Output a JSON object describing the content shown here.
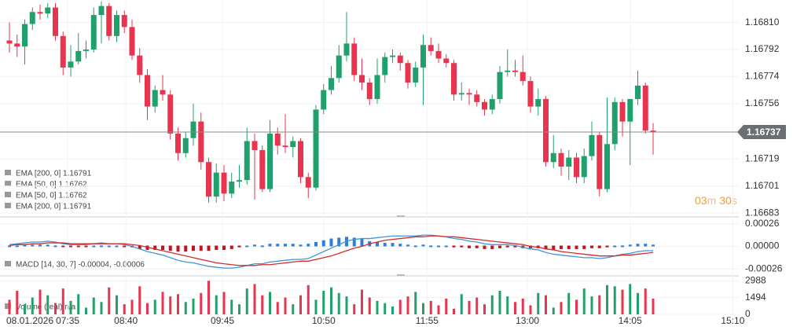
{
  "chart_data": [
    {
      "type": "candlestick",
      "indicators": [
        "EMA [200, 0] 1.16791",
        "EMA [50, 0] 1.16762",
        "EMA [50, 0] 1.16762",
        "EMA [200, 0] 1.16791"
      ],
      "up_color": "#22a06b",
      "down_color": "#e8344e",
      "ohlc": [
        [
          1.16798,
          1.1681,
          1.1679,
          1.16796
        ],
        [
          1.16796,
          1.16802,
          1.16787,
          1.16794
        ],
        [
          1.16794,
          1.16812,
          1.16782,
          1.16809
        ],
        [
          1.16809,
          1.1682,
          1.16805,
          1.16817
        ],
        [
          1.16817,
          1.16822,
          1.16812,
          1.16816
        ],
        [
          1.16816,
          1.16823,
          1.16813,
          1.1682
        ],
        [
          1.1682,
          1.16823,
          1.16798,
          1.16801
        ],
        [
          1.16801,
          1.16804,
          1.16775,
          1.1678
        ],
        [
          1.1678,
          1.16795,
          1.16774,
          1.16784
        ],
        [
          1.16784,
          1.16803,
          1.16782,
          1.16791
        ],
        [
          1.16791,
          1.16798,
          1.16786,
          1.16792
        ],
        [
          1.16792,
          1.1682,
          1.1679,
          1.16815
        ],
        [
          1.16815,
          1.16824,
          1.16796,
          1.16821
        ],
        [
          1.16821,
          1.16823,
          1.16798,
          1.16801
        ],
        [
          1.16801,
          1.16818,
          1.16797,
          1.16815
        ],
        [
          1.16815,
          1.16818,
          1.16803,
          1.16807
        ],
        [
          1.16807,
          1.16812,
          1.16785,
          1.16788
        ],
        [
          1.16788,
          1.16793,
          1.1677,
          1.16775
        ],
        [
          1.16775,
          1.16779,
          1.16745,
          1.16754
        ],
        [
          1.16754,
          1.16768,
          1.1675,
          1.16765
        ],
        [
          1.16765,
          1.16775,
          1.16758,
          1.16762
        ],
        [
          1.16762,
          1.16765,
          1.16732,
          1.16736
        ],
        [
          1.16736,
          1.1674,
          1.16718,
          1.16723
        ],
        [
          1.16723,
          1.16737,
          1.1672,
          1.16733
        ],
        [
          1.16733,
          1.16756,
          1.16728,
          1.16744
        ],
        [
          1.16744,
          1.1675,
          1.16712,
          1.16717
        ],
        [
          1.16717,
          1.1672,
          1.1669,
          1.16694
        ],
        [
          1.16694,
          1.16716,
          1.1669,
          1.1671
        ],
        [
          1.1671,
          1.16715,
          1.16691,
          1.16696
        ],
        [
          1.16696,
          1.1671,
          1.16693,
          1.16704
        ],
        [
          1.16704,
          1.16715,
          1.167,
          1.16705
        ],
        [
          1.16705,
          1.1674,
          1.16702,
          1.16731
        ],
        [
          1.16731,
          1.16736,
          1.16692,
          1.16725
        ],
        [
          1.16725,
          1.16728,
          1.16697,
          1.16699
        ],
        [
          1.16699,
          1.16745,
          1.16697,
          1.16736
        ],
        [
          1.16736,
          1.1674,
          1.16722,
          1.16728
        ],
        [
          1.16728,
          1.16749,
          1.16723,
          1.16727
        ],
        [
          1.16727,
          1.16734,
          1.1672,
          1.16731
        ],
        [
          1.16731,
          1.16733,
          1.16703,
          1.16707
        ],
        [
          1.16707,
          1.1671,
          1.16693,
          1.167
        ],
        [
          1.167,
          1.16755,
          1.16698,
          1.16752
        ],
        [
          1.16752,
          1.16769,
          1.16749,
          1.16765
        ],
        [
          1.16765,
          1.16781,
          1.16762,
          1.16773
        ],
        [
          1.16773,
          1.16795,
          1.1677,
          1.16788
        ],
        [
          1.16788,
          1.16817,
          1.16784,
          1.16796
        ],
        [
          1.16796,
          1.168,
          1.16771,
          1.16775
        ],
        [
          1.16775,
          1.16786,
          1.16765,
          1.1677
        ],
        [
          1.1677,
          1.16773,
          1.16755,
          1.16759
        ],
        [
          1.16759,
          1.16786,
          1.16756,
          1.16775
        ],
        [
          1.16775,
          1.1679,
          1.1677,
          1.16787
        ],
        [
          1.16787,
          1.16792,
          1.16783,
          1.16788
        ],
        [
          1.16788,
          1.1679,
          1.16778,
          1.16783
        ],
        [
          1.16783,
          1.16785,
          1.16766,
          1.1677
        ],
        [
          1.1677,
          1.16784,
          1.16767,
          1.1678
        ],
        [
          1.1678,
          1.16802,
          1.16755,
          1.16795
        ],
        [
          1.16795,
          1.168,
          1.16788,
          1.16791
        ],
        [
          1.16791,
          1.16796,
          1.16783,
          1.16786
        ],
        [
          1.16786,
          1.16789,
          1.1678,
          1.16783
        ],
        [
          1.16783,
          1.16785,
          1.16758,
          1.16762
        ],
        [
          1.16762,
          1.1677,
          1.16758,
          1.16763
        ],
        [
          1.16763,
          1.16766,
          1.16755,
          1.16762
        ],
        [
          1.16762,
          1.16765,
          1.16754,
          1.16757
        ],
        [
          1.16757,
          1.16759,
          1.16748,
          1.16752
        ],
        [
          1.16752,
          1.16762,
          1.16749,
          1.16759
        ],
        [
          1.16759,
          1.16781,
          1.16756,
          1.16777
        ],
        [
          1.16777,
          1.16792,
          1.16774,
          1.16778
        ],
        [
          1.16778,
          1.16785,
          1.16774,
          1.16777
        ],
        [
          1.16777,
          1.16788,
          1.16768,
          1.16771
        ],
        [
          1.16771,
          1.16774,
          1.1675,
          1.16754
        ],
        [
          1.16754,
          1.16766,
          1.16748,
          1.16759
        ],
        [
          1.16759,
          1.16761,
          1.16714,
          1.16717
        ],
        [
          1.16717,
          1.16735,
          1.16713,
          1.16723
        ],
        [
          1.16723,
          1.16726,
          1.16708,
          1.16714
        ],
        [
          1.16714,
          1.16725,
          1.16705,
          1.1672
        ],
        [
          1.1672,
          1.16723,
          1.16703,
          1.16707
        ],
        [
          1.16707,
          1.16726,
          1.16703,
          1.16721
        ],
        [
          1.16721,
          1.16744,
          1.16718,
          1.16735
        ],
        [
          1.16735,
          1.16737,
          1.16694,
          1.16699
        ],
        [
          1.16699,
          1.1676,
          1.16697,
          1.16729
        ],
        [
          1.16729,
          1.1676,
          1.16725,
          1.16757
        ],
        [
          1.16757,
          1.16759,
          1.16734,
          1.16744
        ],
        [
          1.16744,
          1.16759,
          1.16715,
          1.16759
        ],
        [
          1.16759,
          1.16778,
          1.16755,
          1.16768
        ],
        [
          1.16768,
          1.1677,
          1.16736,
          1.16738
        ],
        [
          1.16738,
          1.16743,
          1.16722,
          1.16737
        ]
      ],
      "ylim": [
        1.16681,
        1.16825
      ],
      "yticks": [
        {
          "value": 1.1681,
          "label": "1.16810"
        },
        1.16792,
        1.16774,
        1.16756,
        1.16719,
        1.16701,
        1.16683
      ],
      "current_price": 1.16737,
      "timer": {
        "minutes": "03",
        "minutes_unit": "m",
        "seconds": "30",
        "seconds_unit": "s"
      },
      "grid": true
    },
    {
      "type": "macd",
      "label": "MACD [14, 30, 7] -0.00004, -0.00006",
      "histogram": [
        1e-05,
        1e-05,
        2e-05,
        2e-05,
        2e-05,
        2e-05,
        1e-05,
        -1e-05,
        -1e-05,
        -1e-05,
        -1e-05,
        0,
        1e-05,
        0,
        0,
        -1e-05,
        -2e-05,
        -4e-05,
        -5e-05,
        -5e-05,
        -5e-05,
        -6e-05,
        -7e-05,
        -7e-05,
        -6e-05,
        -6e-05,
        -6e-05,
        -5e-05,
        -5e-05,
        -4e-05,
        -2e-05,
        0,
        2e-05,
        1e-05,
        3e-05,
        3e-05,
        3e-05,
        3e-05,
        2e-05,
        3e-05,
        5e-05,
        7e-05,
        9e-05,
        0.0001,
        0.00011,
        0.0001,
        9e-05,
        6e-05,
        5e-05,
        4e-05,
        4e-05,
        3e-05,
        2e-05,
        1e-05,
        2e-05,
        1e-05,
        0,
        0,
        -2e-05,
        -2e-05,
        -3e-05,
        -3e-05,
        -4e-05,
        -4e-05,
        -3e-05,
        -2e-05,
        -2e-05,
        -3e-05,
        -3e-05,
        -3e-05,
        -4e-05,
        -5e-05,
        -4e-05,
        -4e-05,
        -4e-05,
        -4e-05,
        -3e-05,
        -3e-05,
        -2e-05,
        0,
        1e-05,
        2e-05,
        3e-05,
        3e-05,
        2e-05
      ],
      "up_color": "#2b7fd6",
      "down_color": "#c4121f",
      "series": [
        {
          "color": "#3f95dc",
          "values": [
            2e-05,
            3e-05,
            4e-05,
            5e-05,
            5e-05,
            6e-05,
            5e-05,
            3e-05,
            2e-05,
            2e-05,
            2e-05,
            3e-05,
            4e-05,
            3e-05,
            3e-05,
            2e-05,
            0.0,
            -3e-05,
            -6e-05,
            -8e-05,
            -0.0001,
            -0.00013,
            -0.00016,
            -0.00018,
            -0.00019,
            -0.00021,
            -0.00023,
            -0.00024,
            -0.00025,
            -0.00025,
            -0.00024,
            -0.00022,
            -0.0002,
            -0.0002,
            -0.00018,
            -0.00017,
            -0.00016,
            -0.00015,
            -0.00015,
            -0.00014,
            -0.0001,
            -6e-05,
            -2e-05,
            2e-05,
            6e-05,
            8e-05,
            9e-05,
            9e-05,
            0.0001,
            0.00011,
            0.00012,
            0.00012,
            0.00012,
            0.00012,
            0.00013,
            0.00013,
            0.00012,
            0.00011,
            9e-05,
            8e-05,
            6e-05,
            5e-05,
            3e-05,
            2e-05,
            2e-05,
            2e-05,
            1e-05,
            -1e-05,
            -3e-05,
            -4e-05,
            -7e-05,
            -9e-05,
            -0.0001,
            -0.00011,
            -0.00012,
            -0.00013,
            -0.00013,
            -0.00014,
            -0.00013,
            -0.00011,
            -9e-05,
            -8e-05,
            -6e-05,
            -5e-05,
            -5e-05
          ]
        },
        {
          "color": "#d62a2a",
          "values": [
            1e-05,
            2e-05,
            2e-05,
            3e-05,
            3e-05,
            4e-05,
            4e-05,
            4e-05,
            3e-05,
            3e-05,
            3e-05,
            3e-05,
            3e-05,
            3e-05,
            3e-05,
            3e-05,
            2e-05,
            1e-05,
            -1e-05,
            -3e-05,
            -5e-05,
            -7e-05,
            -9e-05,
            -0.00011,
            -0.00013,
            -0.00015,
            -0.00017,
            -0.00019,
            -0.0002,
            -0.00021,
            -0.00022,
            -0.00022,
            -0.00022,
            -0.00021,
            -0.00021,
            -0.0002,
            -0.00019,
            -0.00018,
            -0.00017,
            -0.00017,
            -0.00015,
            -0.00013,
            -0.00011,
            -8e-05,
            -5e-05,
            -2e-05,
            0.0,
            3e-05,
            5e-05,
            7e-05,
            8e-05,
            9e-05,
            0.0001,
            0.00011,
            0.00011,
            0.00012,
            0.00012,
            0.00011,
            0.00011,
            0.0001,
            9e-05,
            8e-05,
            7e-05,
            6e-05,
            5e-05,
            4e-05,
            3e-05,
            2e-05,
            0.0,
            -1e-05,
            -3e-05,
            -4e-05,
            -6e-05,
            -7e-05,
            -8e-05,
            -9e-05,
            -0.0001,
            -0.00011,
            -0.00011,
            -0.00011,
            -0.0001,
            -0.0001,
            -9e-05,
            -8e-05,
            -7e-05
          ]
        }
      ],
      "ylim": [
        -0.00033,
        0.00033
      ],
      "yticks": [
        0.00026,
        {
          "value": 0,
          "label": "0.00000"
        },
        -0.00026
      ]
    },
    {
      "type": "volume",
      "label": "Volume (real) n/a",
      "values": [
        1300,
        2100,
        900,
        1500,
        2200,
        1700,
        1000,
        2300,
        1200,
        1800,
        600,
        1500,
        1100,
        2400,
        1700,
        900,
        1300,
        2500,
        1000,
        1300,
        2000,
        1600,
        1800,
        1100,
        1400,
        1900,
        2988,
        1700,
        2000,
        1300,
        900,
        2300,
        2700,
        1700,
        2000,
        1100,
        1500,
        900,
        1700,
        2600,
        1300,
        2100,
        2400,
        1900,
        1600,
        900,
        2200,
        1500,
        1200,
        1000,
        700,
        1300,
        1600,
        2000,
        1000,
        1200,
        800,
        1400,
        500,
        1800,
        1200,
        1500,
        900,
        1700,
        2100,
        1600,
        1100,
        1400,
        800,
        1900,
        1700,
        600,
        1100,
        1900,
        1300,
        2300,
        1600,
        1700,
        2600,
        2500,
        2200,
        2700,
        1900,
        2300,
        1400
      ],
      "ylim": [
        0,
        3360
      ],
      "yticks": [
        2988,
        1494,
        0
      ],
      "date_label": "08.01.2026",
      "xticks": [
        {
          "value": 7.6,
          "label": "07:35"
        },
        {
          "value": 15.2,
          "label": "08:40"
        },
        {
          "value": 27.8,
          "label": "09:45"
        },
        {
          "value": 41,
          "label": "10:50"
        },
        {
          "value": 54.5,
          "label": "11:55"
        },
        {
          "value": 67.6,
          "label": "13:00"
        },
        {
          "value": 81,
          "label": "14:05"
        },
        {
          "value": 94.4,
          "label": "15:10"
        }
      ]
    }
  ]
}
